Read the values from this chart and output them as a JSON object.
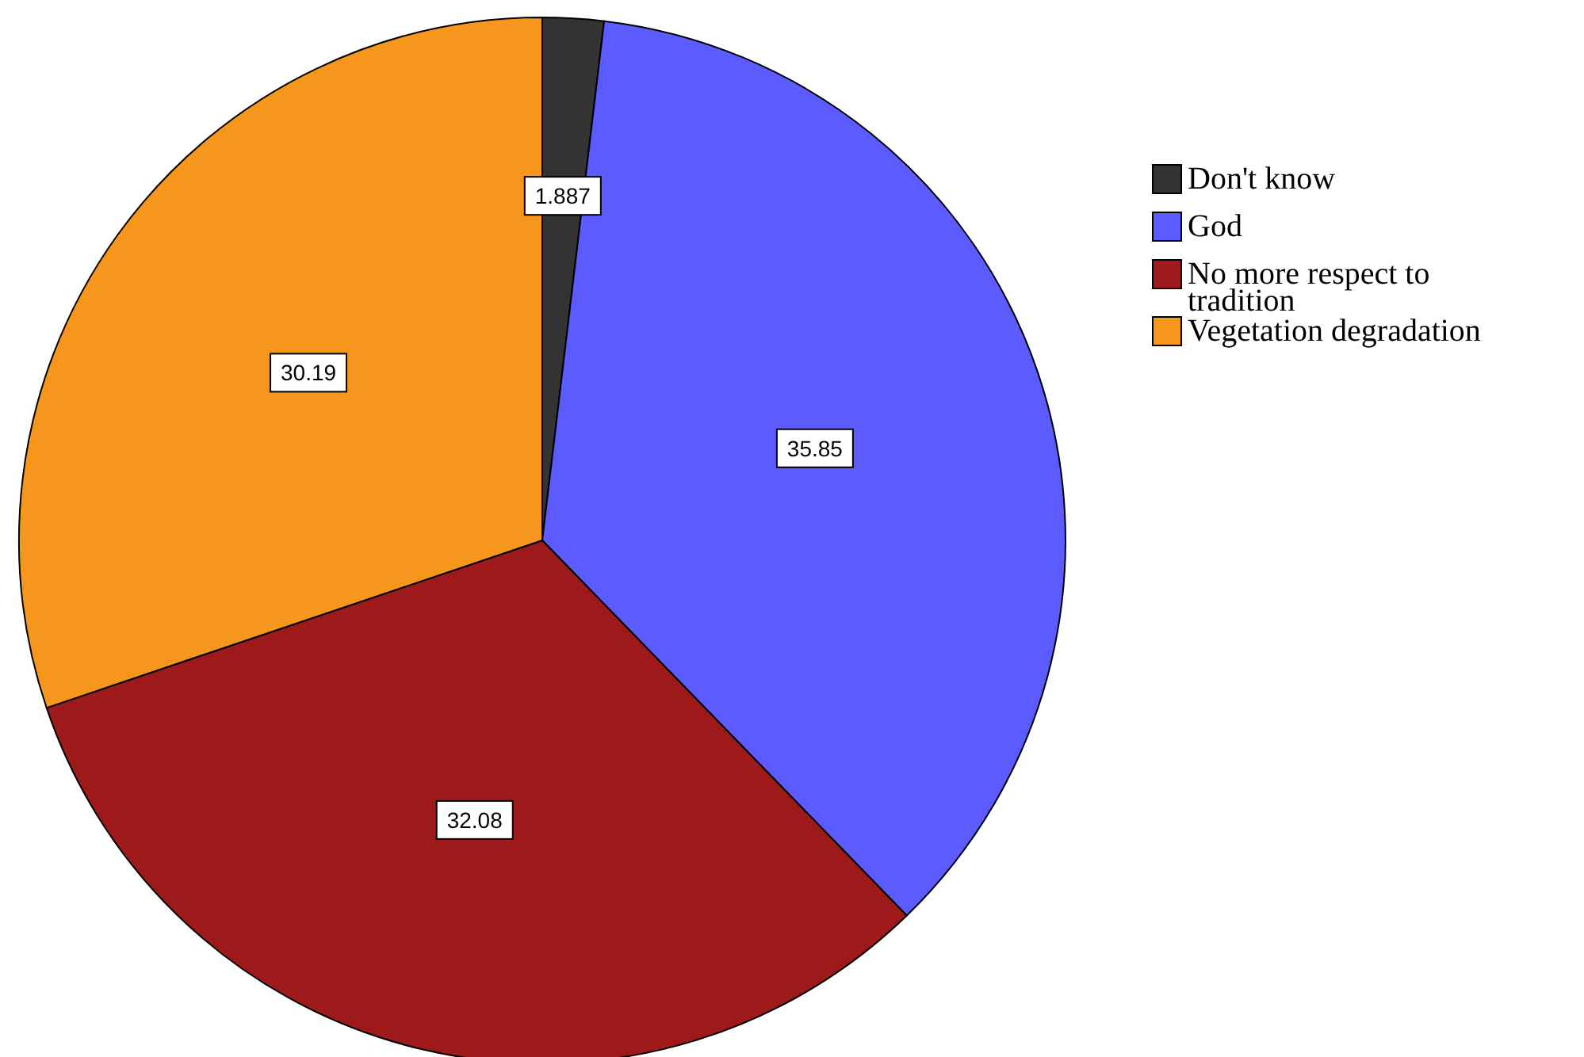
{
  "chart_data": {
    "type": "pie",
    "categories": [
      "Don't know",
      "God",
      "No more respect to tradition",
      "Vegetation degradation"
    ],
    "values": [
      1.887,
      35.85,
      32.08,
      30.19
    ],
    "colors": [
      "#333333",
      "#5b5bff",
      "#9e1a1a",
      "#f7961c"
    ],
    "data_labels": true,
    "legend": "top right"
  }
}
